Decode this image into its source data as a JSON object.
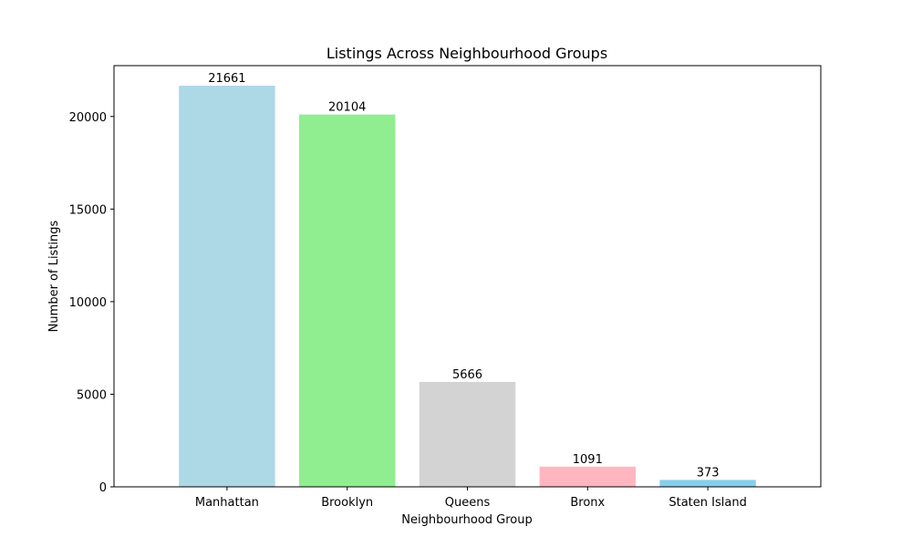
{
  "chart_data": {
    "type": "bar",
    "title": "Listings Across Neighbourhood Groups",
    "xlabel": "Neighbourhood Group",
    "ylabel": "Number of Listings",
    "categories": [
      "Manhattan",
      "Brooklyn",
      "Queens",
      "Bronx",
      "Staten Island"
    ],
    "values": [
      21661,
      20104,
      5666,
      1091,
      373
    ],
    "data_labels": [
      "21661",
      "20104",
      "5666",
      "1091",
      "373"
    ],
    "colors": [
      "#add8e6",
      "#90ee90",
      "#d3d3d3",
      "#ffb6c1",
      "#87ceeb"
    ],
    "ylim": [
      0,
      22745
    ],
    "yticks": [
      0,
      5000,
      10000,
      15000,
      20000
    ],
    "ytick_labels": [
      "0",
      "5000",
      "10000",
      "15000",
      "20000"
    ],
    "grid": false,
    "legend": "none"
  }
}
